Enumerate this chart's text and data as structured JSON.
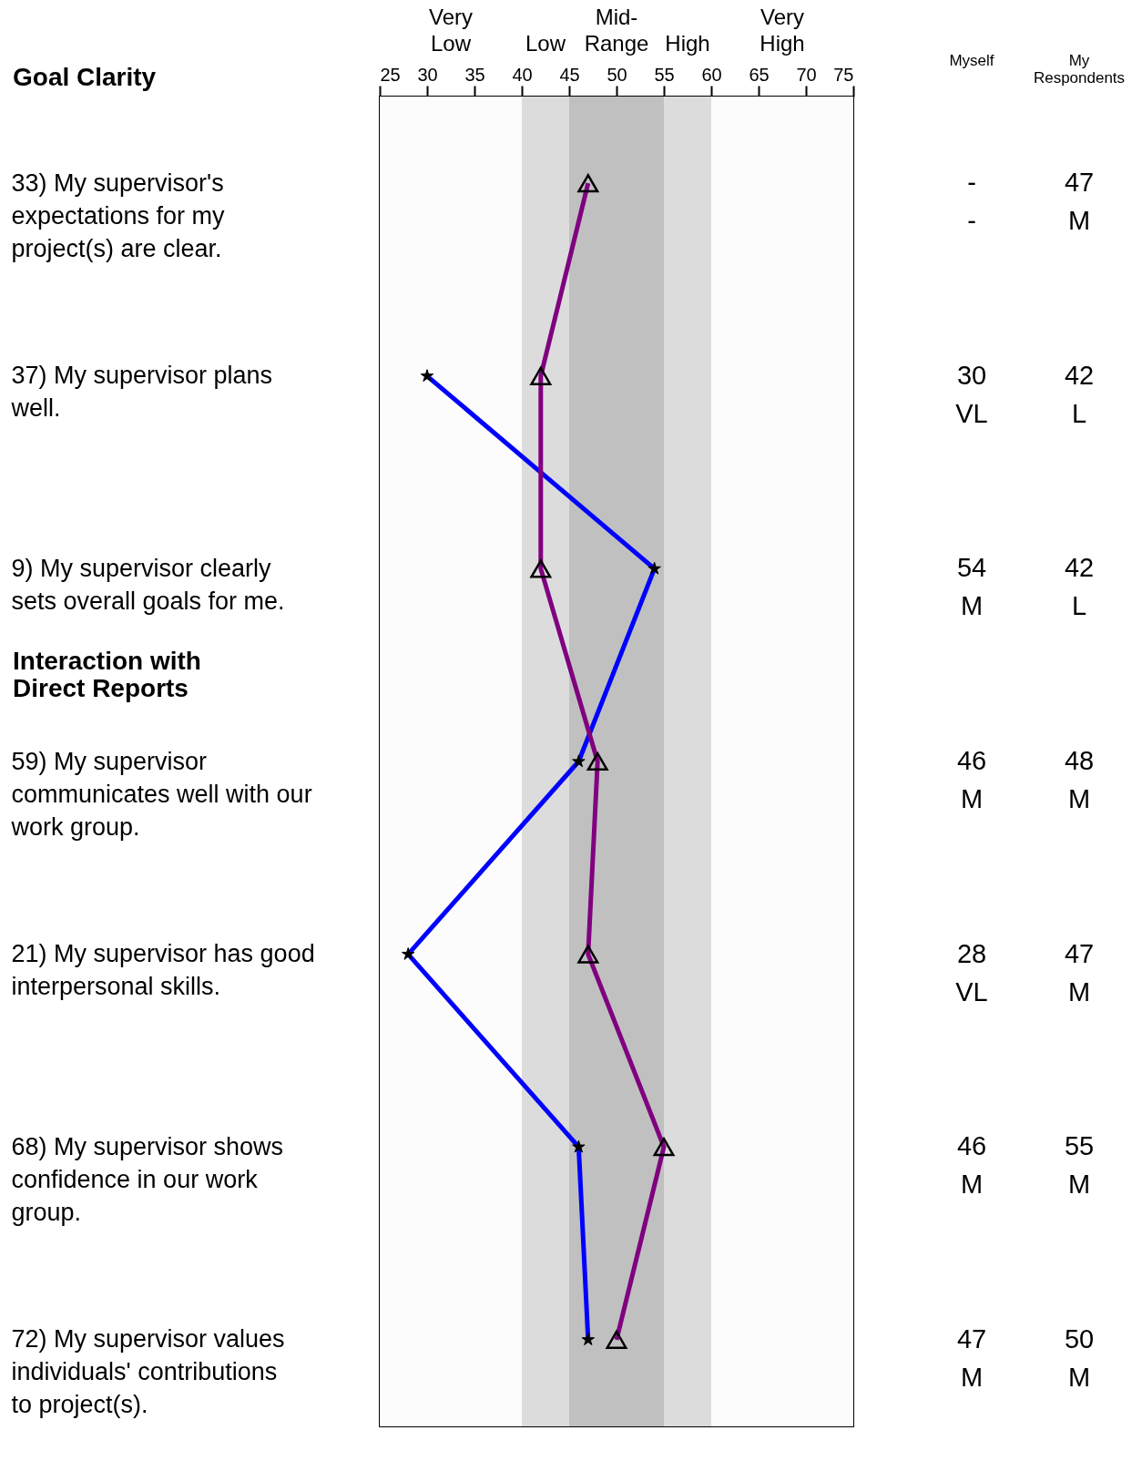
{
  "chart_data": {
    "type": "line",
    "orientation": "horizontal",
    "categories": [
      "33) My supervisor's expectations for my project(s) are clear.",
      "37) My supervisor plans well.",
      "9) My supervisor clearly sets overall goals for me.",
      "59) My supervisor communicates well with our work group.",
      "21) My supervisor has good interpersonal skills.",
      "68) My supervisor shows confidence in our work group.",
      "72) My supervisor values individuals' contributions to project(s)."
    ],
    "series": [
      {
        "name": "Myself",
        "color": "#0000ff",
        "marker": "star",
        "values": [
          null,
          30,
          54,
          46,
          28,
          46,
          47
        ],
        "value_labels": [
          "- -",
          "30 VL",
          "54 M",
          "46 M",
          "28 VL",
          "46 M",
          "47 M"
        ]
      },
      {
        "name": "My Respondents",
        "color": "#800080",
        "marker": "triangle",
        "values": [
          47,
          42,
          42,
          48,
          47,
          55,
          50
        ],
        "value_labels": [
          "47 M",
          "42 L",
          "42 L",
          "48 M",
          "47 M",
          "55 M",
          "50 M"
        ]
      }
    ],
    "xlim": [
      25,
      75
    ],
    "xticks": [
      25,
      30,
      35,
      40,
      45,
      50,
      55,
      60,
      65,
      70,
      75
    ],
    "grid": false,
    "bands": [
      {
        "axis": "x",
        "from": 25,
        "to": 40,
        "label": "Very Low",
        "color": "#fcfcfc"
      },
      {
        "axis": "x",
        "from": 40,
        "to": 45,
        "label": "Low",
        "color": "#dcdcdc"
      },
      {
        "axis": "x",
        "from": 45,
        "to": 55,
        "label": "Mid-Range",
        "color": "#c0c0c0"
      },
      {
        "axis": "x",
        "from": 55,
        "to": 60,
        "label": "High",
        "color": "#dcdcdc"
      },
      {
        "axis": "x",
        "from": 60,
        "to": 75,
        "label": "Very High",
        "color": "#fcfcfc"
      }
    ],
    "annotations": [
      "Goal Clarity",
      "Interaction with Direct Reports"
    ]
  }
}
